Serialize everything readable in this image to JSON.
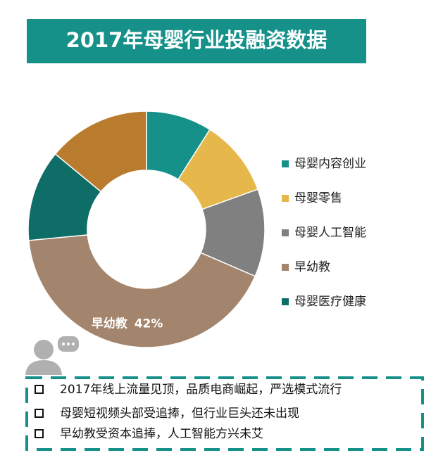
{
  "chart_data": {
    "type": "donut",
    "title": "2017年母婴行业投融资数据",
    "categories": [
      "母婴内容创业",
      "母婴零售",
      "母婴人工智能",
      "早幼教",
      "母婴医疗健康",
      null
    ],
    "values": [
      9,
      10.5,
      12,
      42,
      12.5,
      14
    ],
    "value_labels": [
      null,
      null,
      null,
      "42%",
      null,
      null
    ],
    "colors": [
      "#15918a",
      "#e6b84c",
      "#808080",
      "#a3846c",
      "#0f6d67",
      "#b97b2d"
    ]
  },
  "notes": [
    "2017年线上流量见顶，品质电商崛起，严选模式流行",
    "母婴短视频头部受追捧，但行业巨头还未出现",
    "早幼教受资本追捧，人工智能方兴未艾"
  ]
}
